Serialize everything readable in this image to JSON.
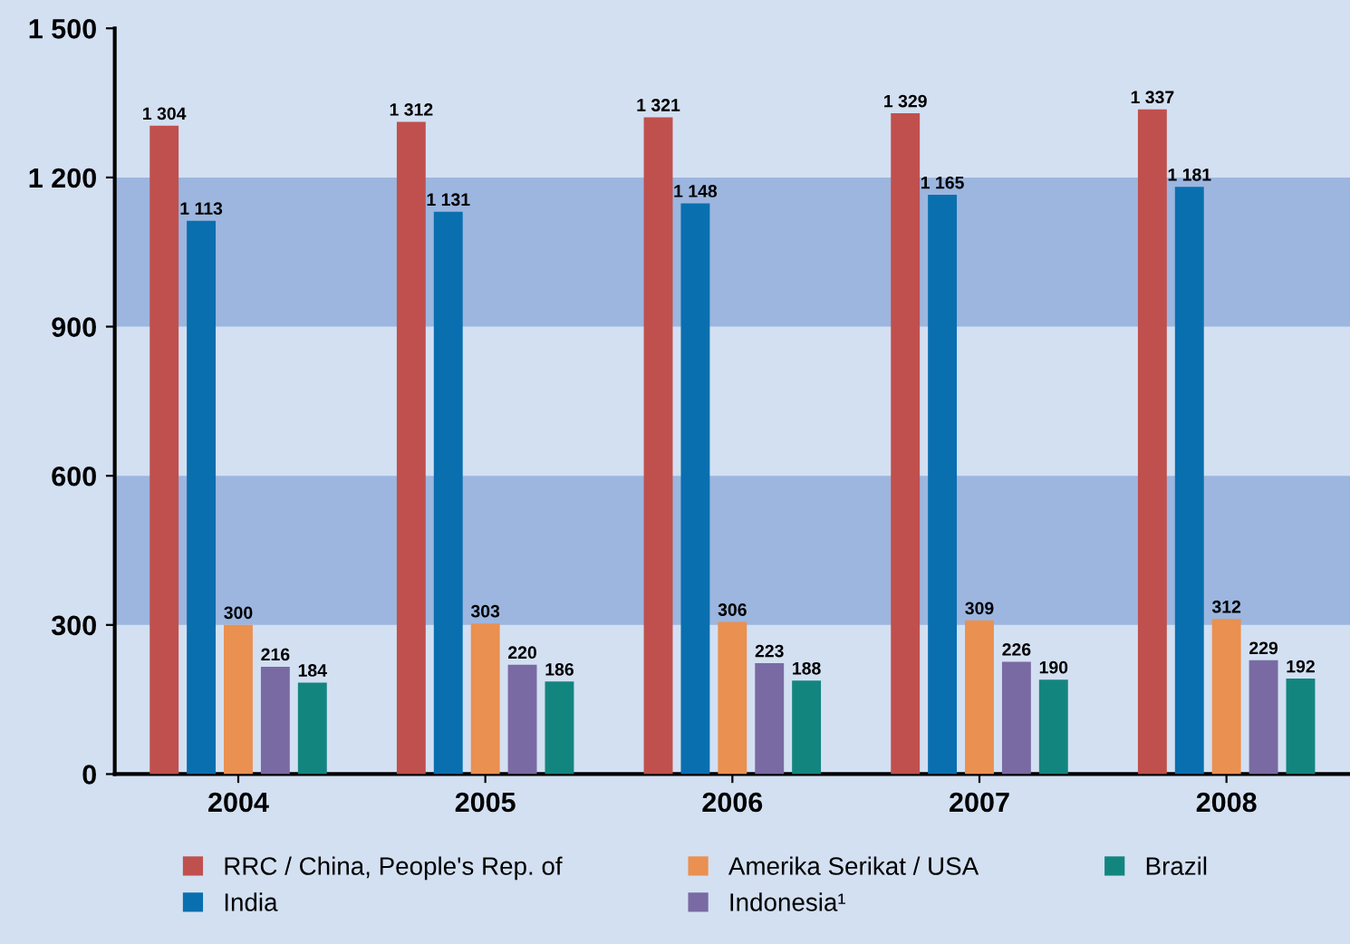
{
  "chart_data": {
    "type": "bar",
    "categories": [
      "2004",
      "2005",
      "2006",
      "2007",
      "2008"
    ],
    "series": [
      {
        "name": "RRC / China, People's Rep. of",
        "color": "#c0504d",
        "values": [
          1304,
          1312,
          1321,
          1329,
          1337
        ],
        "value_labels": [
          "1 304",
          "1 312",
          "1 321",
          "1 329",
          "1 337"
        ]
      },
      {
        "name": "India",
        "color": "#0a6fae",
        "values": [
          1113,
          1131,
          1148,
          1165,
          1181
        ],
        "value_labels": [
          "1 113",
          "1 131",
          "1 148",
          "1 165",
          "1 181"
        ]
      },
      {
        "name": "Amerika Serikat / USA",
        "color": "#ea9050",
        "values": [
          300,
          303,
          306,
          309,
          312
        ],
        "value_labels": [
          "300",
          "303",
          "306",
          "309",
          "312"
        ]
      },
      {
        "name": "Indonesia¹",
        "color": "#7a6aa3",
        "values": [
          216,
          220,
          223,
          226,
          229
        ],
        "value_labels": [
          "216",
          "220",
          "223",
          "226",
          "229"
        ]
      },
      {
        "name": "Brazil",
        "color": "#13857f",
        "values": [
          184,
          186,
          188,
          190,
          192
        ],
        "value_labels": [
          "184",
          "186",
          "188",
          "190",
          "192"
        ]
      }
    ],
    "ylim": [
      0,
      1500
    ],
    "yticks": [
      0,
      300,
      600,
      900,
      {
        "value": 1200,
        "label": "1 200"
      },
      {
        "value": 1500,
        "label": "1 500"
      }
    ],
    "bands": [
      {
        "axis": "y",
        "from": 300,
        "to": 600,
        "color": "#9cb6df"
      },
      {
        "axis": "y",
        "from": 900,
        "to": 1200,
        "color": "#9cb6df"
      }
    ],
    "grid": false,
    "legend": "bottom"
  }
}
